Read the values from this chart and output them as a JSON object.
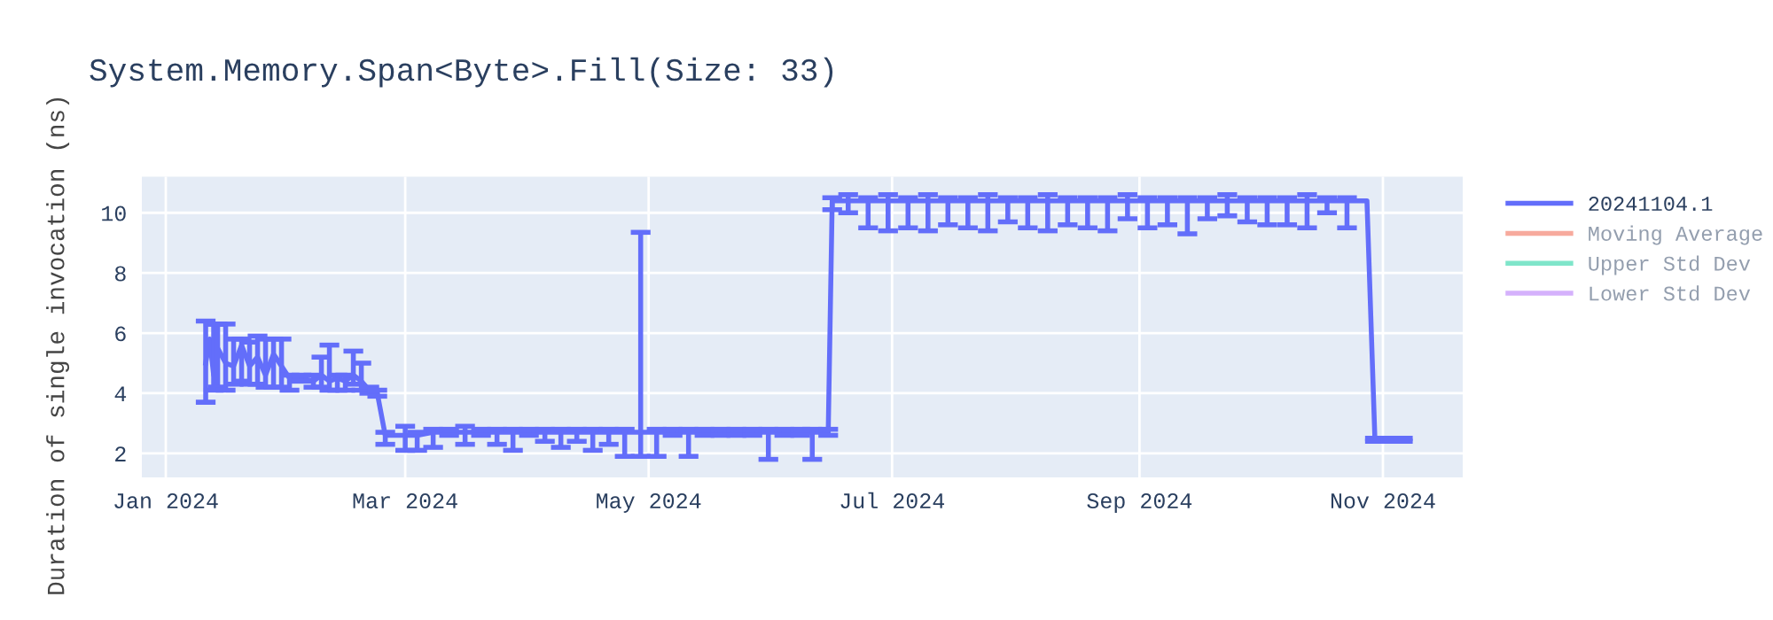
{
  "chart_data": {
    "type": "line",
    "title": "System.Memory.Span<Byte>.Fill(Size: 33)",
    "ylabel": "Duration of single invocation (ns)",
    "x": [
      "2024-01-11",
      "2024-01-12",
      "2024-01-13",
      "2024-01-14",
      "2024-01-16",
      "2024-01-18",
      "2024-01-20",
      "2024-01-22",
      "2024-01-24",
      "2024-01-26",
      "2024-01-28",
      "2024-01-30",
      "2024-02-01",
      "2024-02-04",
      "2024-02-07",
      "2024-02-09",
      "2024-02-11",
      "2024-02-13",
      "2024-02-15",
      "2024-02-17",
      "2024-02-19",
      "2024-02-21",
      "2024-02-23",
      "2024-02-25",
      "2024-03-01",
      "2024-03-04",
      "2024-03-08",
      "2024-03-12",
      "2024-03-16",
      "2024-03-20",
      "2024-03-24",
      "2024-03-28",
      "2024-04-01",
      "2024-04-05",
      "2024-04-09",
      "2024-04-13",
      "2024-04-17",
      "2024-04-21",
      "2024-04-25",
      "2024-04-29",
      "2024-05-03",
      "2024-05-07",
      "2024-05-11",
      "2024-05-15",
      "2024-05-19",
      "2024-05-23",
      "2024-05-27",
      "2024-05-31",
      "2024-06-04",
      "2024-06-08",
      "2024-06-11",
      "2024-06-15",
      "2024-06-16",
      "2024-06-20",
      "2024-06-25",
      "2024-06-30",
      "2024-07-05",
      "2024-07-10",
      "2024-07-15",
      "2024-07-20",
      "2024-07-25",
      "2024-07-30",
      "2024-08-04",
      "2024-08-09",
      "2024-08-14",
      "2024-08-19",
      "2024-08-24",
      "2024-08-29",
      "2024-09-03",
      "2024-09-08",
      "2024-09-13",
      "2024-09-18",
      "2024-09-23",
      "2024-09-28",
      "2024-10-03",
      "2024-10-08",
      "2024-10-13",
      "2024-10-18",
      "2024-10-23",
      "2024-10-28",
      "2024-10-30",
      "2024-11-03",
      "2024-11-06"
    ],
    "series": [
      {
        "name": "20241104.1",
        "color": "#636efa",
        "values": [
          5.0,
          5.8,
          4.6,
          5.5,
          5.0,
          4.9,
          5.6,
          4.9,
          5.2,
          4.6,
          5.3,
          4.9,
          4.5,
          4.5,
          4.4,
          4.6,
          4.4,
          4.5,
          4.4,
          4.6,
          4.4,
          4.1,
          4.0,
          2.6,
          2.6,
          2.6,
          2.7,
          2.7,
          2.7,
          2.7,
          2.7,
          2.7,
          2.7,
          2.7,
          2.7,
          2.7,
          2.7,
          2.7,
          2.7,
          2.7,
          2.7,
          2.7,
          2.7,
          2.7,
          2.7,
          2.7,
          2.7,
          2.7,
          2.7,
          2.7,
          2.7,
          2.7,
          10.4,
          10.4,
          10.4,
          10.4,
          10.4,
          10.4,
          10.4,
          10.4,
          10.4,
          10.4,
          10.4,
          10.4,
          10.4,
          10.4,
          10.4,
          10.4,
          10.4,
          10.4,
          10.4,
          10.4,
          10.4,
          10.4,
          10.4,
          10.4,
          10.4,
          10.4,
          10.4,
          10.4,
          2.45,
          2.45,
          2.45
        ],
        "errors": [
          [
            3.7,
            6.4
          ],
          null,
          [
            4.1,
            6.3
          ],
          [
            4.2,
            6.3
          ],
          [
            4.1,
            6.3
          ],
          [
            4.3,
            5.8
          ],
          [
            4.4,
            5.8
          ],
          [
            4.3,
            5.7
          ],
          [
            4.3,
            5.9
          ],
          [
            4.2,
            5.8
          ],
          [
            4.2,
            5.8
          ],
          [
            4.2,
            5.8
          ],
          [
            4.1,
            4.6
          ],
          [
            4.4,
            4.6
          ],
          [
            4.2,
            4.6
          ],
          [
            4.2,
            5.2
          ],
          [
            4.1,
            5.6
          ],
          [
            4.1,
            4.6
          ],
          [
            4.1,
            4.6
          ],
          [
            4.3,
            5.4
          ],
          [
            4.1,
            5.0
          ],
          [
            4.0,
            4.2
          ],
          [
            3.9,
            4.1
          ],
          [
            2.3,
            2.7
          ],
          [
            2.1,
            2.9
          ],
          [
            2.1,
            2.7
          ],
          [
            2.2,
            2.8
          ],
          [
            2.6,
            2.8
          ],
          [
            2.3,
            2.9
          ],
          [
            2.6,
            2.8
          ],
          [
            2.3,
            2.8
          ],
          [
            2.1,
            2.8
          ],
          [
            2.6,
            2.8
          ],
          [
            2.4,
            2.8
          ],
          [
            2.2,
            2.8
          ],
          [
            2.4,
            2.8
          ],
          [
            2.1,
            2.8
          ],
          [
            2.3,
            2.8
          ],
          [
            1.9,
            2.8
          ],
          [
            1.9,
            9.35
          ],
          [
            1.9,
            2.8
          ],
          [
            2.6,
            2.8
          ],
          [
            1.9,
            2.8
          ],
          [
            2.6,
            2.8
          ],
          [
            2.6,
            2.8
          ],
          [
            2.6,
            2.8
          ],
          [
            2.6,
            2.8
          ],
          [
            1.8,
            2.8
          ],
          [
            2.6,
            2.8
          ],
          [
            2.6,
            2.8
          ],
          [
            1.8,
            2.8
          ],
          [
            2.6,
            2.8
          ],
          [
            10.1,
            10.5
          ],
          [
            10.0,
            10.6
          ],
          [
            9.5,
            10.5
          ],
          [
            9.4,
            10.6
          ],
          [
            9.5,
            10.5
          ],
          [
            9.4,
            10.6
          ],
          [
            9.6,
            10.5
          ],
          [
            9.5,
            10.5
          ],
          [
            9.4,
            10.6
          ],
          [
            9.7,
            10.5
          ],
          [
            9.5,
            10.5
          ],
          [
            9.4,
            10.6
          ],
          [
            9.6,
            10.5
          ],
          [
            9.5,
            10.5
          ],
          [
            9.4,
            10.5
          ],
          [
            9.8,
            10.6
          ],
          [
            9.5,
            10.5
          ],
          [
            9.6,
            10.5
          ],
          [
            9.3,
            10.5
          ],
          [
            9.8,
            10.5
          ],
          [
            9.9,
            10.6
          ],
          [
            9.7,
            10.5
          ],
          [
            9.6,
            10.5
          ],
          [
            9.6,
            10.5
          ],
          [
            9.5,
            10.6
          ],
          [
            10.0,
            10.5
          ],
          [
            9.5,
            10.5
          ],
          null,
          [
            2.4,
            2.5
          ],
          [
            2.4,
            2.5
          ],
          [
            2.4,
            2.5
          ]
        ]
      },
      {
        "name": "Moving Average",
        "color": "#ef553b",
        "values": [
          null,
          null,
          null,
          null,
          null,
          null,
          null,
          null,
          null,
          null,
          null,
          null,
          null,
          null,
          null,
          null,
          null,
          null,
          null,
          null,
          null,
          null,
          null,
          null,
          null,
          null,
          null,
          null,
          null,
          null,
          null,
          null,
          null,
          null,
          null,
          null,
          null,
          null,
          null,
          null,
          null,
          null,
          null,
          null,
          null,
          null,
          null,
          null,
          null,
          null,
          null,
          null,
          null,
          null,
          null,
          null,
          null,
          null,
          null,
          null,
          null,
          null,
          null,
          null,
          null,
          null,
          null,
          null,
          null,
          null,
          null,
          null,
          null,
          null,
          null,
          null,
          null,
          null,
          null,
          null,
          null,
          null,
          null
        ]
      },
      {
        "name": "Upper Std Dev",
        "color": "#00cc96",
        "values": [
          null,
          null,
          null,
          null,
          null,
          null,
          null,
          null,
          null,
          null,
          null,
          null,
          null,
          null,
          null,
          null,
          null,
          null,
          null,
          null,
          null,
          null,
          null,
          null,
          null,
          null,
          null,
          null,
          null,
          null,
          null,
          null,
          null,
          null,
          null,
          null,
          null,
          null,
          null,
          null,
          null,
          null,
          null,
          null,
          null,
          null,
          null,
          null,
          null,
          null,
          null,
          null,
          null,
          null,
          null,
          null,
          null,
          null,
          null,
          null,
          null,
          null,
          null,
          null,
          null,
          null,
          null,
          null,
          null,
          null,
          null,
          null,
          null,
          null,
          null,
          null,
          null,
          null,
          null,
          null,
          null,
          null,
          null
        ]
      },
      {
        "name": "Lower Std Dev",
        "color": "#ab63fa",
        "values": [
          null,
          null,
          null,
          null,
          null,
          null,
          null,
          null,
          null,
          null,
          null,
          null,
          null,
          null,
          null,
          null,
          null,
          null,
          null,
          null,
          null,
          null,
          null,
          null,
          null,
          null,
          null,
          null,
          null,
          null,
          null,
          null,
          null,
          null,
          null,
          null,
          null,
          null,
          null,
          null,
          null,
          null,
          null,
          null,
          null,
          null,
          null,
          null,
          null,
          null,
          null,
          null,
          null,
          null,
          null,
          null,
          null,
          null,
          null,
          null,
          null,
          null,
          null,
          null,
          null,
          null,
          null,
          null,
          null,
          null,
          null,
          null,
          null,
          null,
          null,
          null,
          null,
          null,
          null,
          null,
          null,
          null,
          null
        ]
      }
    ],
    "xlim": [
      "2023-12-26",
      "2024-11-21"
    ],
    "xticks": [
      {
        "value": "2024-01-01",
        "label": "Jan 2024"
      },
      {
        "value": "2024-03-01",
        "label": "Mar 2024"
      },
      {
        "value": "2024-05-01",
        "label": "May 2024"
      },
      {
        "value": "2024-07-01",
        "label": "Jul 2024"
      },
      {
        "value": "2024-09-01",
        "label": "Sep 2024"
      },
      {
        "value": "2024-11-01",
        "label": "Nov 2024"
      }
    ],
    "ylim": [
      1.2,
      11.2
    ],
    "yticks": [
      2,
      4,
      6,
      8,
      10
    ],
    "grid": true,
    "legend": "top right",
    "marker": "none",
    "line_style": "solid"
  }
}
